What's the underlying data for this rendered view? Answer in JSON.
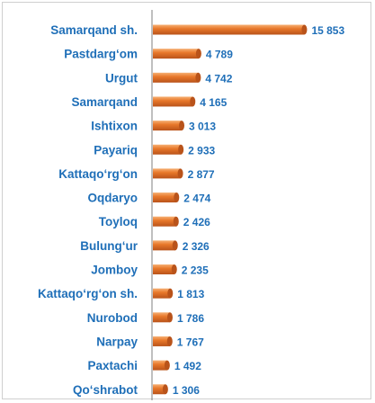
{
  "chart_data": {
    "type": "bar",
    "orientation": "horizontal",
    "categories": [
      "Samarqand sh.",
      "Pastdarg‘om",
      "Urgut",
      "Samarqand",
      "Ishtixon",
      "Payariq",
      "Kattaqo‘rg‘on",
      "Oqdaryo",
      "Toyloq",
      "Bulung‘ur",
      "Jomboy",
      "Kattaqo‘rg‘on sh.",
      "Nurobod",
      "Narpay",
      "Paxtachi",
      "Qo‘shrabot"
    ],
    "values": [
      15853,
      4789,
      4742,
      4165,
      3013,
      2933,
      2877,
      2474,
      2426,
      2326,
      2235,
      1813,
      1786,
      1767,
      1492,
      1306
    ],
    "value_labels": [
      "15 853",
      "4 789",
      "4 742",
      "4 165",
      "3 013",
      "2 933",
      "2 877",
      "2 474",
      "2 426",
      "2 326",
      "2 235",
      "1 813",
      "1 786",
      "1 767",
      "1 492",
      "1 306"
    ],
    "title": "",
    "xlabel": "",
    "ylabel": "",
    "xlim": [
      0,
      16000
    ],
    "grid": false,
    "legend": "none",
    "bar_style": "3d-cylinder",
    "colors": {
      "bar": "#e8782a",
      "bar_light": "#f6b074",
      "bar_dark": "#b9531a",
      "text": "#1f6fb8",
      "axis": "#7f7f7f"
    }
  }
}
